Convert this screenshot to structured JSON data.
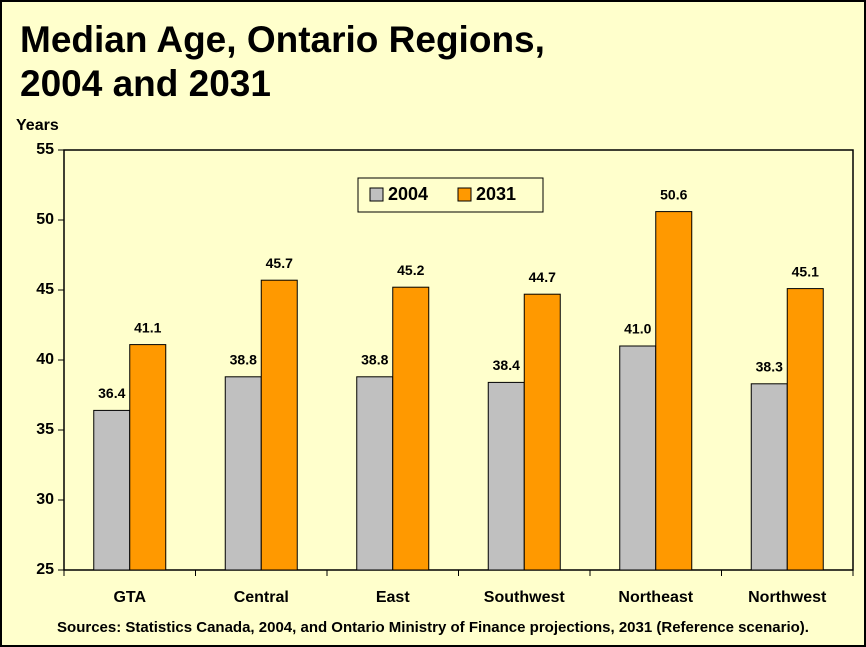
{
  "chart_data": {
    "type": "bar",
    "title": [
      "Median Age, Ontario Regions,",
      "2004 and 2031"
    ],
    "y_label": "Years",
    "source": "Sources: Statistics Canada, 2004, and Ontario Ministry of Finance projections, 2031 (Reference scenario).",
    "categories": [
      "GTA",
      "Central",
      "East",
      "Southwest",
      "Northeast",
      "Northwest"
    ],
    "series": [
      {
        "name": "2004",
        "color": "#c0c0c0",
        "values": [
          36.4,
          38.8,
          38.8,
          38.4,
          41.0,
          38.3
        ],
        "value_labels": [
          "36.4",
          "38.8",
          "38.8",
          "38.4",
          "41.0",
          "38.3"
        ]
      },
      {
        "name": "2031",
        "color": "#ff9900",
        "values": [
          41.1,
          45.7,
          45.2,
          44.7,
          50.6,
          45.1
        ],
        "value_labels": [
          "41.1",
          "45.7",
          "45.2",
          "44.7",
          "50.6",
          "45.1"
        ]
      }
    ],
    "ylim": [
      25,
      55
    ],
    "yticks": [
      25,
      30,
      35,
      40,
      45,
      50,
      55
    ],
    "grid": false,
    "legend": "top"
  }
}
